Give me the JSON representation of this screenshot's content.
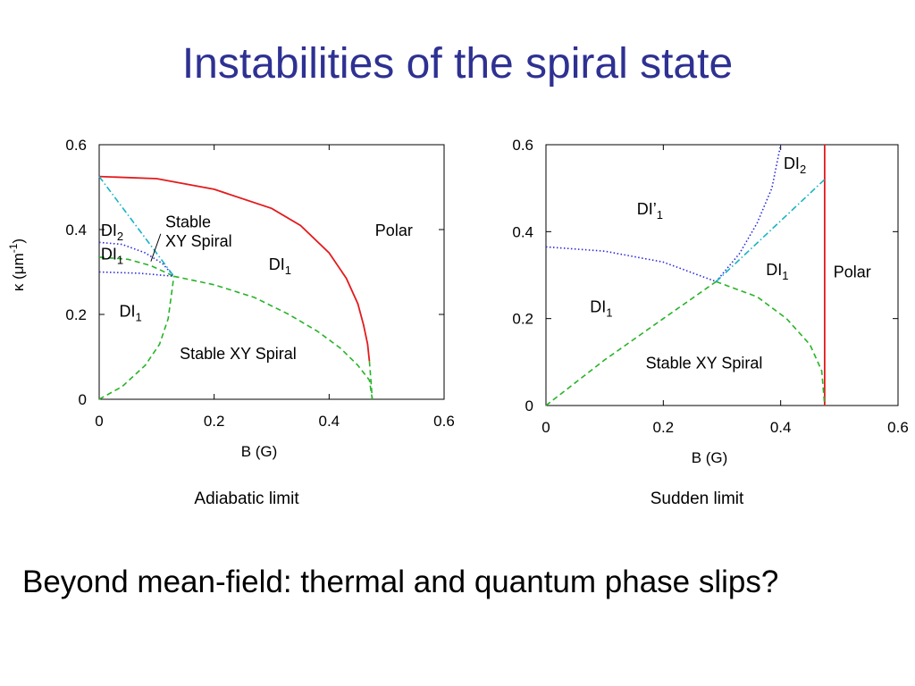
{
  "slide": {
    "title": "Instabilities of the spiral state",
    "footer": "Beyond mean-field: thermal and quantum phase slips?"
  },
  "colors": {
    "title": "#2e3192",
    "red": "#e41a1c",
    "blue": "#2b2bd9",
    "green": "#27b327",
    "cyan": "#16b3c4"
  },
  "chart_data": [
    {
      "type": "line",
      "caption": "Adiabatic limit",
      "xlabel": "B (G)",
      "ylabel_prefix": "κ (μm",
      "ylabel_sup": "-1",
      "ylabel_suffix": ")",
      "xlim": [
        0,
        0.6
      ],
      "ylim": [
        0,
        0.6
      ],
      "xticks": [
        "0",
        "0.2",
        "0.4",
        "0.6"
      ],
      "yticks": [
        "0",
        "0.2",
        "0.4",
        "0.6"
      ],
      "series": [
        {
          "style": "solid",
          "color": "red",
          "points": [
            [
              0,
              0.525
            ],
            [
              0.1,
              0.52
            ],
            [
              0.2,
              0.495
            ],
            [
              0.3,
              0.45
            ],
            [
              0.35,
              0.41
            ],
            [
              0.4,
              0.345
            ],
            [
              0.43,
              0.285
            ],
            [
              0.45,
              0.225
            ],
            [
              0.46,
              0.175
            ],
            [
              0.467,
              0.13
            ],
            [
              0.47,
              0.09
            ]
          ]
        },
        {
          "style": "dashed",
          "color": "green",
          "points": [
            [
              0.47,
              0.09
            ],
            [
              0.473,
              0.04
            ],
            [
              0.475,
              0
            ]
          ]
        },
        {
          "style": "dashed",
          "color": "green",
          "points": [
            [
              0,
              0
            ],
            [
              0.04,
              0.03
            ],
            [
              0.08,
              0.08
            ],
            [
              0.105,
              0.13
            ],
            [
              0.12,
              0.19
            ],
            [
              0.125,
              0.24
            ],
            [
              0.13,
              0.29
            ]
          ]
        },
        {
          "style": "dashed",
          "color": "green",
          "points": [
            [
              0.13,
              0.29
            ],
            [
              0.2,
              0.27
            ],
            [
              0.27,
              0.24
            ],
            [
              0.33,
              0.2
            ],
            [
              0.38,
              0.16
            ],
            [
              0.42,
              0.12
            ],
            [
              0.45,
              0.08
            ],
            [
              0.47,
              0.045
            ],
            [
              0.475,
              0
            ]
          ]
        },
        {
          "style": "dashed",
          "color": "green",
          "points": [
            [
              0,
              0.335
            ],
            [
              0.05,
              0.33
            ],
            [
              0.09,
              0.315
            ],
            [
              0.13,
              0.29
            ]
          ]
        },
        {
          "style": "dotted",
          "color": "blue",
          "points": [
            [
              0,
              0.37
            ],
            [
              0.04,
              0.365
            ],
            [
              0.08,
              0.345
            ],
            [
              0.11,
              0.32
            ],
            [
              0.13,
              0.29
            ]
          ]
        },
        {
          "style": "dotted",
          "color": "blue",
          "points": [
            [
              0,
              0.3
            ],
            [
              0.07,
              0.297
            ],
            [
              0.13,
              0.29
            ]
          ]
        },
        {
          "style": "dashdot",
          "color": "cyan",
          "points": [
            [
              0,
              0.525
            ],
            [
              0.13,
              0.29
            ]
          ]
        }
      ],
      "annotations": [
        {
          "text": "DI",
          "sub": "2",
          "x": 0.003,
          "y": 0.385
        },
        {
          "text": "DI",
          "sub": "1",
          "x": 0.003,
          "y": 0.33
        },
        {
          "text": "DI",
          "sub": "1",
          "x": 0.035,
          "y": 0.195
        },
        {
          "text": "Stable",
          "x": 0.115,
          "y": 0.405
        },
        {
          "text": "XY Spiral",
          "x": 0.115,
          "y": 0.36
        },
        {
          "text": "Polar",
          "x": 0.48,
          "y": 0.385
        },
        {
          "text": "DI",
          "sub": "1",
          "x": 0.295,
          "y": 0.305
        },
        {
          "text": "Stable XY Spiral",
          "x": 0.14,
          "y": 0.095
        }
      ],
      "pointer": {
        "from": [
          0.107,
          0.39
        ],
        "to": [
          0.09,
          0.325
        ]
      }
    },
    {
      "type": "line",
      "caption": "Sudden limit",
      "xlabel": "B (G)",
      "xlim": [
        0,
        0.6
      ],
      "ylim": [
        0,
        0.6
      ],
      "xticks": [
        "0",
        "0.2",
        "0.4",
        "0.6"
      ],
      "yticks": [
        "0",
        "0.2",
        "0.4",
        "0.6"
      ],
      "series": [
        {
          "style": "solid",
          "color": "red",
          "points": [
            [
              0.475,
              0
            ],
            [
              0.475,
              0.6
            ]
          ]
        },
        {
          "style": "dashed",
          "color": "green",
          "points": [
            [
              0,
              0
            ],
            [
              0.1,
              0.105
            ],
            [
              0.2,
              0.2
            ],
            [
              0.29,
              0.285
            ]
          ]
        },
        {
          "style": "dashed",
          "color": "green",
          "points": [
            [
              0.29,
              0.285
            ],
            [
              0.36,
              0.25
            ],
            [
              0.41,
              0.2
            ],
            [
              0.45,
              0.14
            ],
            [
              0.47,
              0.08
            ],
            [
              0.475,
              0
            ]
          ]
        },
        {
          "style": "dotted",
          "color": "blue",
          "points": [
            [
              0,
              0.365
            ],
            [
              0.1,
              0.355
            ],
            [
              0.2,
              0.33
            ],
            [
              0.29,
              0.285
            ]
          ]
        },
        {
          "style": "dotted",
          "color": "blue",
          "points": [
            [
              0.29,
              0.285
            ],
            [
              0.33,
              0.35
            ],
            [
              0.36,
              0.42
            ],
            [
              0.385,
              0.5
            ],
            [
              0.4,
              0.6
            ]
          ]
        },
        {
          "style": "dashdot",
          "color": "cyan",
          "points": [
            [
              0.29,
              0.285
            ],
            [
              0.475,
              0.52
            ]
          ]
        }
      ],
      "annotations": [
        {
          "text": "DI",
          "sub": "2",
          "x": 0.405,
          "y": 0.545
        },
        {
          "text": "DI’",
          "sub": "1",
          "x": 0.155,
          "y": 0.44
        },
        {
          "text": "DI",
          "sub": "1",
          "x": 0.375,
          "y": 0.3
        },
        {
          "text": "Polar",
          "x": 0.49,
          "y": 0.295
        },
        {
          "text": "DI",
          "sub": "1",
          "x": 0.075,
          "y": 0.215
        },
        {
          "text": "Stable XY Spiral",
          "x": 0.17,
          "y": 0.085
        }
      ]
    }
  ]
}
